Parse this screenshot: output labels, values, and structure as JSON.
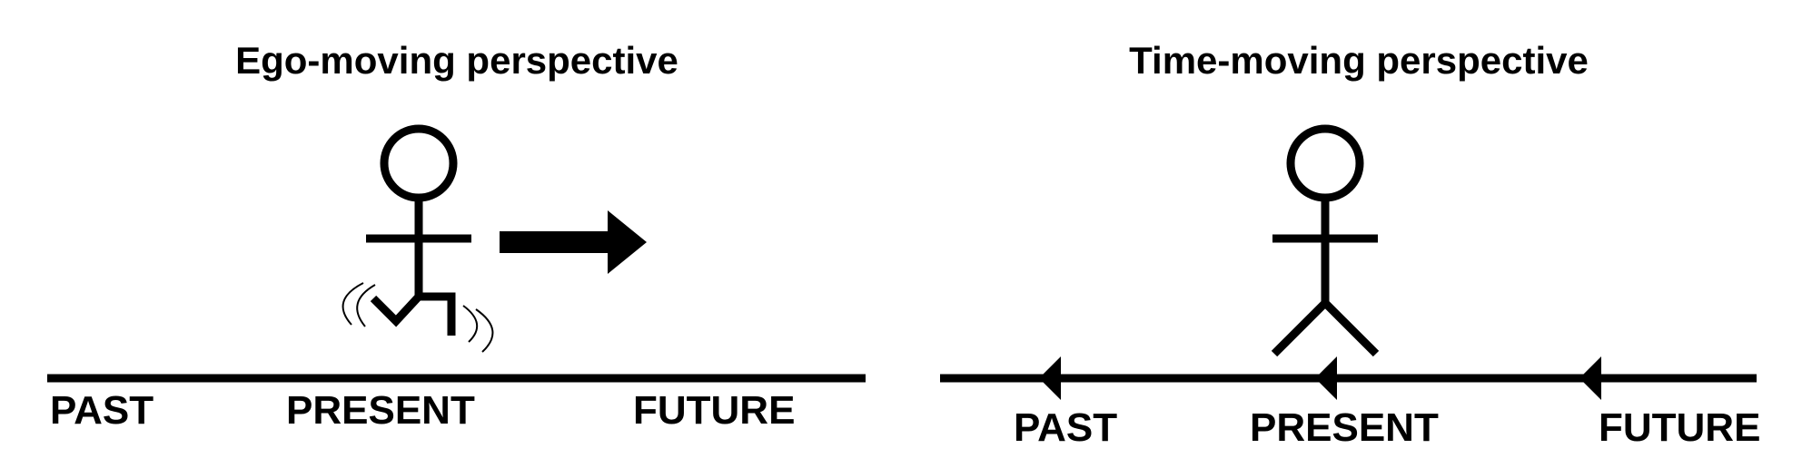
{
  "diagram": {
    "colors": {
      "ink": "#000000",
      "background": "#ffffff"
    },
    "ego_moving": {
      "title": "Ego-moving perspective",
      "labels": {
        "past": "PAST",
        "present": "PRESENT",
        "future": "FUTURE"
      }
    },
    "time_moving": {
      "title": "Time-moving perspective",
      "labels": {
        "past": "PAST",
        "present": "PRESENT",
        "future": "FUTURE"
      }
    }
  }
}
